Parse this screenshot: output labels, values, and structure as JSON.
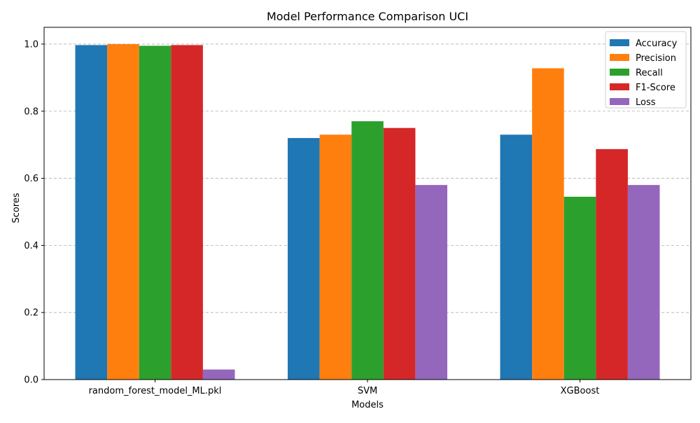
{
  "chart_data": {
    "type": "bar",
    "title": "Model Performance Comparison UCI",
    "xlabel": "Models",
    "ylabel": "Scores",
    "ylim": [
      0,
      1.05
    ],
    "yticks": [
      0.0,
      0.2,
      0.4,
      0.6,
      0.8,
      1.0
    ],
    "ytick_labels": [
      "0.0",
      "0.2",
      "0.4",
      "0.6",
      "0.8",
      "1.0"
    ],
    "grid": "y-dashed",
    "legend_position": "top-right",
    "categories": [
      "random_forest_model_ML.pkl",
      "SVM",
      "XGBoost"
    ],
    "series": [
      {
        "name": "Accuracy",
        "color": "#1f77b4",
        "values": [
          0.997,
          0.72,
          0.73
        ]
      },
      {
        "name": "Precision",
        "color": "#ff7f0e",
        "values": [
          1.0,
          0.73,
          0.928
        ]
      },
      {
        "name": "Recall",
        "color": "#2ca02c",
        "values": [
          0.995,
          0.77,
          0.545
        ]
      },
      {
        "name": "F1-Score",
        "color": "#d62728",
        "values": [
          0.997,
          0.75,
          0.687
        ]
      },
      {
        "name": "Loss",
        "color": "#9467bd",
        "values": [
          0.03,
          0.58,
          0.58
        ]
      }
    ]
  }
}
